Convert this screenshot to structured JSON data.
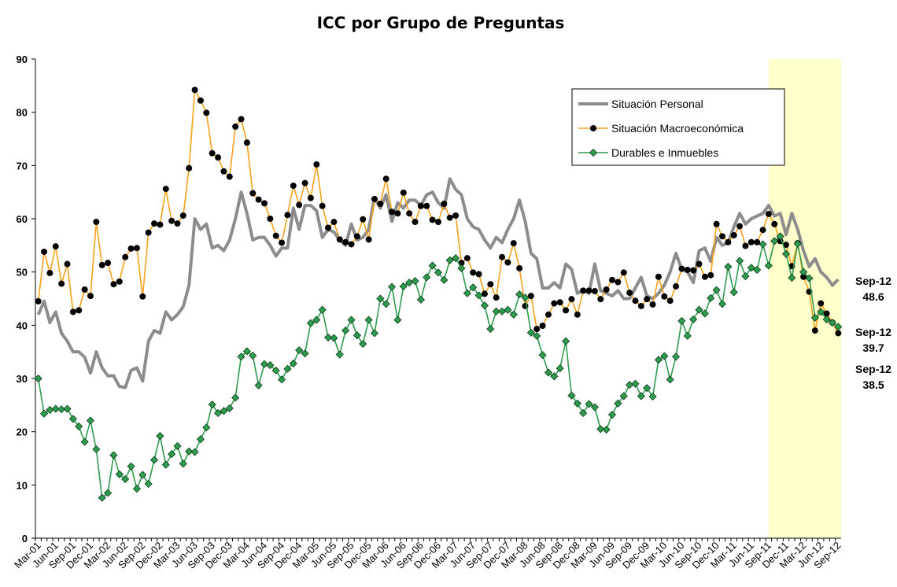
{
  "chart_data": {
    "type": "line",
    "title": "ICC por Grupo de Preguntas",
    "categories": [
      "Mar-01",
      null,
      null,
      "Jun-01",
      null,
      null,
      "Sep-01",
      null,
      null,
      "Dec-01",
      null,
      null,
      "Mar-02",
      null,
      null,
      "Jun-02",
      null,
      null,
      "Sep-02",
      null,
      null,
      "Dec-02",
      null,
      null,
      "Mar-03",
      null,
      null,
      "Jun-03",
      null,
      null,
      "Sep-03",
      null,
      null,
      "Dec-03",
      null,
      null,
      "Mar-04",
      null,
      null,
      "Jun-04",
      null,
      null,
      "Sep-04",
      null,
      null,
      "Dec-04",
      null,
      null,
      "Mar-05",
      null,
      null,
      "Jun-05",
      null,
      null,
      "Sep-05",
      null,
      null,
      "Dec-05",
      null,
      null,
      "Mar-06",
      null,
      null,
      "Jun-06",
      null,
      null,
      "Sep-06",
      null,
      null,
      "Dec-06",
      null,
      null,
      "Mar-07",
      null,
      null,
      "Jun-07",
      null,
      null,
      "Sep-07",
      null,
      null,
      "Dec-07",
      null,
      null,
      "Mar-08",
      null,
      null,
      "Jun-08",
      null,
      null,
      "Sep-08",
      null,
      null,
      "Dec-08",
      null,
      null,
      "Mar-09",
      null,
      null,
      "Jun-09",
      null,
      null,
      "Sep-09",
      null,
      null,
      "Dec-09",
      null,
      null,
      "Mar-10",
      null,
      null,
      "Jun-10",
      null,
      null,
      "Sep-10",
      null,
      null,
      "Dec-10",
      null,
      null,
      "Mar-11",
      null,
      null,
      "Jun-11",
      null,
      null,
      "Sep-11",
      null,
      null,
      "Dec-11",
      null,
      null,
      "Mar-12",
      null,
      null,
      "Jun-12",
      null,
      null,
      "Sep-12"
    ],
    "series": [
      {
        "name": "Situación Personal",
        "color": "#8c8c8c",
        "marker": "none",
        "values": [
          42,
          44.5,
          40.5,
          42.5,
          38.5,
          37,
          35,
          35,
          34,
          31,
          35,
          32,
          30.5,
          30.5,
          28.5,
          28.3,
          31.5,
          32,
          29.5,
          37,
          39,
          38.5,
          42.5,
          41,
          42,
          43.5,
          47.5,
          60,
          58,
          59,
          54.5,
          55,
          54,
          56,
          60,
          65,
          61,
          56,
          56.5,
          56.5,
          55,
          53,
          54.5,
          54.5,
          62,
          58,
          62.5,
          62.5,
          61.5,
          56.5,
          58,
          57.5,
          56,
          55,
          59,
          56,
          56.5,
          58,
          64,
          62,
          64.5,
          59.5,
          63,
          62,
          63.5,
          63.5,
          62.5,
          64.5,
          65,
          63,
          62,
          67.5,
          65.5,
          64.5,
          60,
          58.5,
          58,
          56,
          54.5,
          56.5,
          55.5,
          58,
          60,
          63.5,
          59.5,
          53.5,
          52.5,
          47,
          47,
          48,
          47,
          51.5,
          50.5,
          46,
          46.5,
          46,
          51.5,
          46.5,
          46,
          45.5,
          46.5,
          45,
          45,
          47,
          49,
          45.5,
          45,
          46,
          47.5,
          50,
          53.5,
          50.5,
          50,
          48,
          54,
          54.5,
          52,
          56.5,
          55,
          55.5,
          58.5,
          61,
          59,
          60,
          60.5,
          61,
          62.5,
          60.5,
          61,
          57,
          61,
          58,
          54,
          51,
          52.5,
          50,
          49,
          47.5,
          48.6
        ]
      },
      {
        "name": "Situación Macroeconómica",
        "color": "#f7a11a",
        "marker": "circle",
        "values": [
          44.5,
          53.8,
          49.8,
          54.8,
          47.8,
          51.5,
          42.5,
          42.8,
          46.7,
          45.5,
          59.4,
          51.3,
          51.7,
          47.7,
          48.2,
          52.8,
          54.4,
          54.5,
          45.4,
          57.4,
          59.1,
          58.9,
          65.6,
          59.6,
          59.1,
          60.6,
          69.5,
          84.2,
          82.2,
          79.9,
          72.3,
          71.5,
          68.9,
          67.9,
          77.3,
          78.7,
          74.3,
          64.8,
          63.6,
          62.9,
          60.0,
          56.8,
          55.5,
          60.7,
          66.2,
          62.6,
          66.7,
          63.9,
          70.2,
          62.4,
          58.3,
          59.4,
          56.1,
          55.6,
          55.2,
          56.7,
          59.9,
          56.1,
          63.7,
          62.8,
          67.5,
          61.3,
          61.0,
          64.9,
          61.0,
          59.4,
          62.4,
          62.4,
          59.8,
          59.4,
          62.8,
          60.2,
          60.6,
          51.7,
          52.6,
          49.9,
          49.6,
          45.9,
          47.7,
          45.2,
          52.8,
          51.8,
          55.4,
          50.7,
          43.6,
          45.5,
          39.3,
          39.9,
          42.0,
          44.1,
          44.3,
          42.8,
          44.9,
          42.0,
          46.5,
          46.5,
          46.4,
          44.9,
          46.7,
          48.5,
          48.1,
          49.9,
          46.1,
          44.6,
          43.6,
          44.9,
          43.9,
          49.1,
          45.4,
          44.6,
          47.3,
          50.6,
          50.4,
          50.3,
          51.5,
          49.1,
          49.4,
          59.0,
          56.7,
          55.6,
          56.9,
          58.6,
          54.9,
          55.6,
          55.6,
          57.9,
          60.9,
          59.0,
          55.8,
          55.1,
          51.1,
          55.4,
          49.1,
          46.3,
          39.0,
          44.1,
          42.2,
          40.5,
          38.5
        ]
      },
      {
        "name": "Durables e Inmuebles",
        "color": "#2e9b4e",
        "marker": "diamond",
        "values": [
          30,
          23.4,
          24.1,
          24.3,
          24.2,
          24.3,
          22.4,
          21.0,
          18.1,
          22.1,
          16.7,
          7.6,
          8.5,
          15.6,
          12.0,
          11.1,
          13.5,
          9.3,
          11.9,
          10.2,
          14.7,
          19.2,
          13.8,
          15.8,
          17.3,
          14.0,
          16.3,
          16.2,
          18.6,
          20.8,
          25.1,
          23.5,
          23.9,
          24.4,
          26.4,
          34.1,
          35.1,
          34.3,
          28.7,
          32.7,
          32.5,
          31.5,
          29.8,
          31.8,
          32.8,
          35.3,
          34.7,
          40.4,
          41.0,
          42.9,
          37.7,
          37.6,
          34.5,
          39.0,
          41.0,
          38.1,
          36.5,
          41.0,
          38.5,
          45.0,
          44.0,
          47.2,
          41.0,
          47.3,
          48.0,
          48.3,
          44.8,
          49.0,
          51.2,
          49.9,
          48.5,
          52.2,
          52.6,
          50.7,
          46.0,
          47.1,
          45.6,
          43.7,
          39.3,
          42.6,
          42.6,
          42.9,
          42.0,
          45.8,
          45.2,
          38.6,
          38.0,
          34.4,
          31.1,
          30.4,
          31.9,
          37.0,
          26.8,
          25.3,
          23.5,
          25.2,
          24.6,
          20.5,
          20.4,
          23.2,
          25.3,
          26.7,
          28.8,
          29.0,
          26.7,
          28.2,
          26.6,
          33.5,
          34.2,
          29.8,
          34.1,
          40.8,
          38.0,
          41.1,
          42.9,
          42.2,
          45.1,
          46.6,
          44.0,
          51.0,
          46.2,
          52.1,
          49.2,
          50.8,
          50.4,
          55.2,
          51.2,
          55.8,
          56.7,
          53.4,
          48.9,
          55.3,
          50.0,
          48.8,
          41.4,
          42.5,
          41.1,
          40.5,
          39.7
        ]
      }
    ],
    "ylim": [
      0,
      90
    ],
    "yticks": [
      0,
      10,
      20,
      30,
      40,
      50,
      60,
      70,
      80,
      90
    ],
    "highlight": [
      "Sep-11",
      "Sep-12"
    ],
    "highlight_color": "#ffffcc",
    "legend": "upper right",
    "annotations": [
      {
        "label": "Sep-12",
        "value": 48.6
      },
      {
        "label": "Sep-12",
        "value": 39.7
      },
      {
        "label": "Sep-12",
        "value": 38.5
      }
    ]
  }
}
